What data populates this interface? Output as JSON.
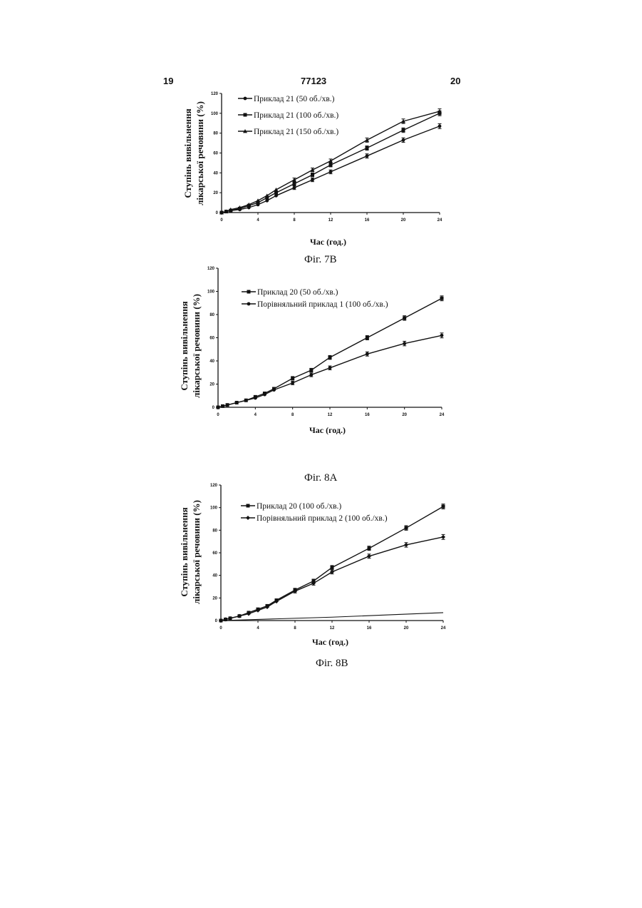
{
  "page": {
    "left_number": "19",
    "center_number": "77123",
    "right_number": "20"
  },
  "chart_data": [
    {
      "type": "line",
      "caption": "Фіг. 7B",
      "ylabel": "Ступінь вивільнення лікарської речовини (%)",
      "xlabel": "Час (год.)",
      "xlim": [
        0,
        24
      ],
      "ylim": [
        0,
        120
      ],
      "xticks": [
        0,
        4,
        8,
        12,
        16,
        20,
        24
      ],
      "yticks": [
        0,
        20,
        40,
        60,
        80,
        100,
        120
      ],
      "legend_position": "top-left",
      "series": [
        {
          "name": "Приклад 21 (50 об./хв.)",
          "marker": "circle",
          "x": [
            0,
            0.5,
            1,
            2,
            3,
            4,
            5,
            6,
            8,
            10,
            12,
            16,
            20,
            24
          ],
          "y": [
            0,
            1,
            2,
            3,
            5,
            8,
            12,
            17,
            25,
            33,
            41,
            57,
            73,
            87
          ]
        },
        {
          "name": "Приклад 21 (100 об./хв.)",
          "marker": "square",
          "x": [
            0,
            0.5,
            1,
            2,
            3,
            4,
            5,
            6,
            8,
            10,
            12,
            16,
            20,
            24
          ],
          "y": [
            0,
            1,
            2,
            4,
            7,
            10,
            15,
            20,
            29,
            38,
            48,
            65,
            83,
            100
          ]
        },
        {
          "name": "Приклад 21 (150 об./хв.)",
          "marker": "triangle",
          "x": [
            0,
            0.5,
            1,
            2,
            3,
            4,
            5,
            6,
            8,
            10,
            12,
            16,
            20,
            24
          ],
          "y": [
            0,
            1,
            3,
            5,
            8,
            12,
            17,
            23,
            33,
            43,
            52,
            73,
            92,
            102
          ]
        }
      ]
    },
    {
      "type": "line",
      "caption": "Фіг. 8А",
      "ylabel": "Ступінь вивільнення лікарської речовини (%)",
      "xlabel": "Час (год.)",
      "xlim": [
        0,
        24
      ],
      "ylim": [
        0,
        120
      ],
      "xticks": [
        0,
        4,
        8,
        12,
        16,
        20,
        24
      ],
      "yticks": [
        0,
        20,
        40,
        60,
        80,
        100,
        120
      ],
      "legend_position": "top-left",
      "series": [
        {
          "name": "Приклад 20 (50 об./хв.)",
          "marker": "square",
          "x": [
            0,
            0.5,
            1,
            2,
            3,
            4,
            5,
            6,
            8,
            10,
            12,
            16,
            20,
            24
          ],
          "y": [
            0,
            1,
            2,
            4,
            6,
            9,
            12,
            16,
            25,
            32,
            43,
            60,
            77,
            94
          ]
        },
        {
          "name": "Порівняльний приклад 1 (100 об./хв.)",
          "marker": "circle",
          "x": [
            0,
            0.5,
            1,
            2,
            3,
            4,
            5,
            6,
            8,
            10,
            12,
            16,
            20,
            24
          ],
          "y": [
            0,
            1,
            2,
            4,
            6,
            8,
            11,
            15,
            21,
            28,
            34,
            46,
            55,
            62
          ]
        }
      ]
    },
    {
      "type": "line",
      "caption": "Фіг. 8B",
      "ylabel": "Ступінь вивільнення лікарської речовини (%)",
      "xlabel": "Час (год.)",
      "xlim": [
        0,
        24
      ],
      "ylim": [
        0,
        120
      ],
      "xticks": [
        0,
        4,
        8,
        12,
        16,
        20,
        24
      ],
      "yticks": [
        0,
        20,
        40,
        60,
        80,
        100,
        120
      ],
      "legend_position": "top-left",
      "series": [
        {
          "name": "Приклад 20 (100 об./хв.)",
          "marker": "square",
          "x": [
            0,
            0.5,
            1,
            2,
            3,
            4,
            5,
            6,
            8,
            10,
            12,
            16,
            20,
            24
          ],
          "y": [
            0,
            1,
            2,
            4,
            7,
            10,
            13,
            18,
            27,
            35,
            47,
            64,
            82,
            101
          ]
        },
        {
          "name": "Порівняльний приклад 2 (100 об./хв.)",
          "marker": "diamond",
          "x": [
            0,
            0.5,
            1,
            2,
            3,
            4,
            5,
            6,
            8,
            10,
            12,
            16,
            20,
            24
          ],
          "y": [
            0,
            1,
            2,
            4,
            6,
            9,
            12,
            17,
            26,
            33,
            43,
            57,
            67,
            74
          ]
        }
      ]
    }
  ]
}
